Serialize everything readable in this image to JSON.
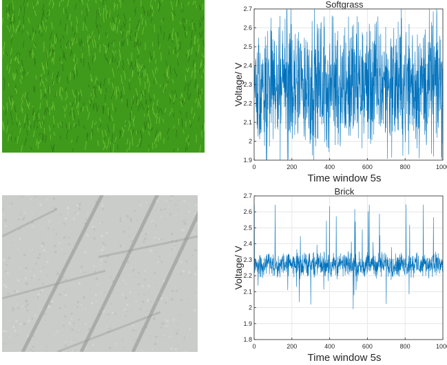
{
  "photos": {
    "grass": {
      "colors": {
        "base": "#3f9a1c",
        "light": "#7ccc3a",
        "dark": "#2a6e12"
      }
    },
    "brick": {
      "colors": {
        "base": "#c9ccc9",
        "light": "#dadcda",
        "seam": "#8f9490"
      }
    }
  },
  "chart_data": [
    {
      "type": "line",
      "title": "Softgrass",
      "xlabel": "Time window 5s",
      "ylabel": "Voltage/ V",
      "xlim": [
        0,
        1000
      ],
      "ylim": [
        1.9,
        2.7
      ],
      "xticks": [
        "0",
        "200",
        "400",
        "600",
        "800",
        "1000"
      ],
      "yticks": [
        "1.9",
        "2",
        "2.1",
        "2.2",
        "2.3",
        "2.4",
        "2.5",
        "2.6",
        "2.7"
      ],
      "grid": true,
      "color": "#0072bd",
      "series": [
        {
          "n_points": 1000,
          "mean": 2.3,
          "min": 1.9,
          "max": 2.7
        }
      ]
    },
    {
      "type": "line",
      "title": "Brick",
      "xlabel": "Time window 5s",
      "ylabel": "Voltage/ V",
      "xlim": [
        0,
        1000
      ],
      "ylim": [
        1.8,
        2.7
      ],
      "xticks": [
        "0",
        "200",
        "400",
        "600",
        "800",
        "1000"
      ],
      "yticks": [
        "1.8",
        "1.9",
        "2",
        "2.1",
        "2.2",
        "2.3",
        "2.4",
        "2.5",
        "2.6",
        "2.7"
      ],
      "grid": true,
      "color": "#0072bd",
      "series": [
        {
          "n_points": 1000,
          "mean": 2.27,
          "min": 1.87,
          "max": 2.67
        }
      ]
    }
  ]
}
